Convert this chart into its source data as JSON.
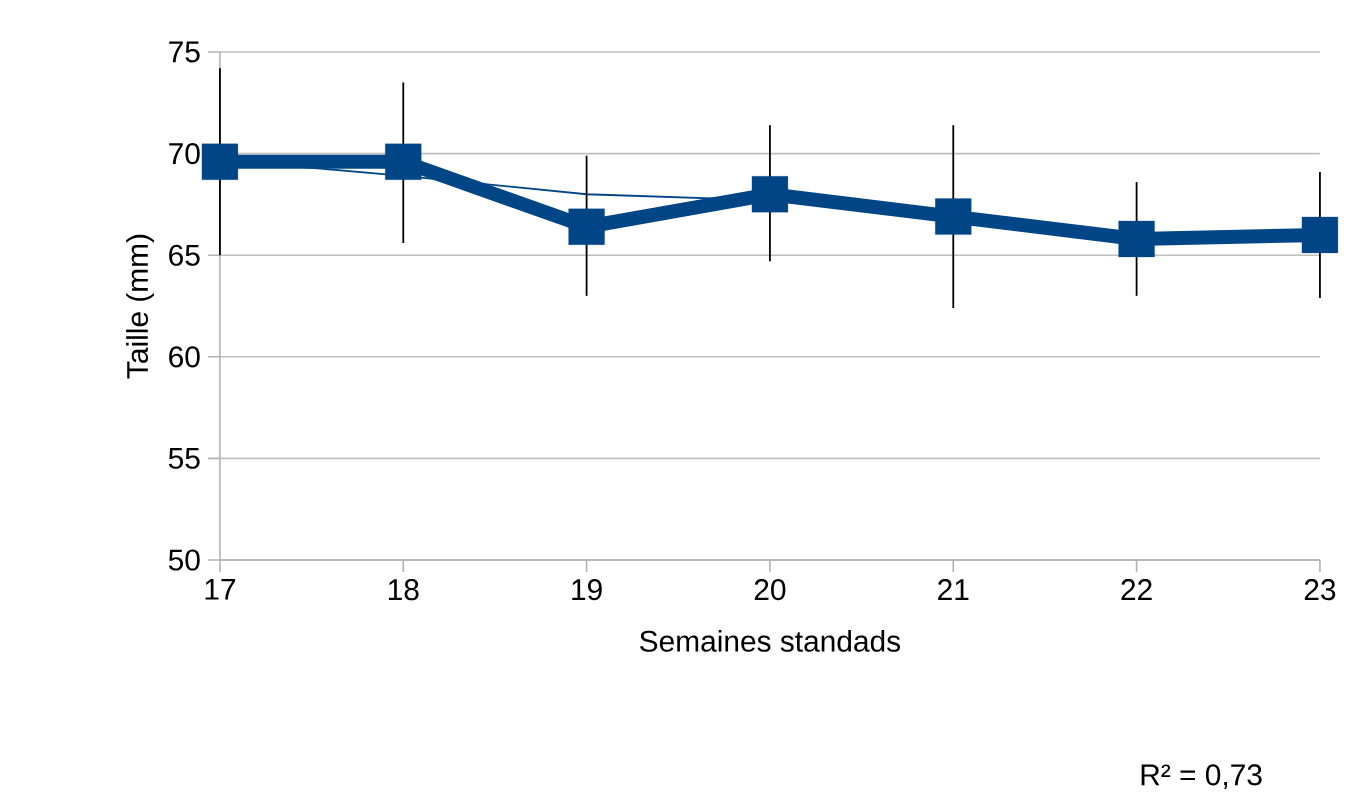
{
  "chart_data": {
    "type": "line",
    "xlabel": "Semaines standads",
    "ylabel": "Taille (mm)",
    "annotations": [
      "R² = 0,73"
    ],
    "x": [
      17,
      18,
      19,
      20,
      21,
      22,
      23
    ],
    "xlim": [
      17,
      23
    ],
    "xticks": [
      17,
      18,
      19,
      20,
      21,
      22,
      23
    ],
    "ylim": [
      50,
      75
    ],
    "yticks": [
      50,
      55,
      60,
      65,
      70,
      75
    ],
    "grid": "y",
    "marker": "square",
    "line_style": "solid",
    "series": [
      {
        "color": "#004586",
        "values": [
          69.6,
          69.6,
          66.4,
          68.0,
          66.9,
          65.8,
          66.0
        ],
        "errors": [
          [
            65.0,
            74.2
          ],
          [
            65.6,
            73.5
          ],
          [
            63.0,
            69.9
          ],
          [
            64.7,
            71.4
          ],
          [
            62.4,
            71.4
          ],
          [
            63.0,
            68.6
          ],
          [
            62.9,
            69.1
          ]
        ]
      },
      {
        "type": "line",
        "marker": "none",
        "color": "#004586",
        "x": [
          17,
          18,
          19,
          20
        ],
        "values": [
          69.7,
          68.9,
          68.0,
          67.7
        ]
      }
    ]
  }
}
